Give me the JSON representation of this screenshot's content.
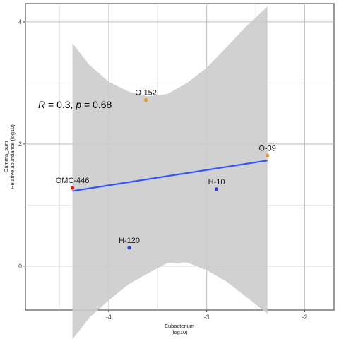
{
  "chart_data": {
    "type": "scatter",
    "xlabel": [
      "Eubacterium",
      "(log10)"
    ],
    "ylabel": [
      "Gamma_sum",
      "Relative abundance (log10)"
    ],
    "xlim": [
      -4.85,
      -1.7
    ],
    "ylim": [
      -0.72,
      4.3
    ],
    "x_ticks": [
      -4,
      -3,
      -2
    ],
    "y_ticks": [
      0,
      2,
      4
    ],
    "grid": true,
    "annotation": {
      "r_label": "R",
      "r_value": " = 0.3, ",
      "p_label": "p",
      "p_value": " = 0.68"
    },
    "points": [
      {
        "label": "OMC-446",
        "x": -4.37,
        "y": 1.28,
        "color": "#e41a1c"
      },
      {
        "label": "O-152",
        "x": -3.62,
        "y": 2.72,
        "color": "#e69533"
      },
      {
        "label": "H-10",
        "x": -2.9,
        "y": 1.26,
        "color": "#2b3bd8"
      },
      {
        "label": "H-120",
        "x": -3.79,
        "y": 0.3,
        "color": "#2b3bd8"
      },
      {
        "label": "O-39",
        "x": -2.38,
        "y": 1.81,
        "color": "#e69533"
      }
    ],
    "fit_line": {
      "x": [
        -4.37,
        -2.38
      ],
      "y": [
        1.23,
        1.73
      ],
      "color": "#3355ff"
    },
    "confidence_band": {
      "color": "#cccccc",
      "x": [
        -4.37,
        -4.2,
        -4.0,
        -3.8,
        -3.6,
        -3.4,
        -3.2,
        -3.0,
        -2.8,
        -2.6,
        -2.38
      ],
      "upper": [
        3.65,
        3.3,
        3.02,
        2.86,
        2.78,
        2.82,
        3.0,
        3.25,
        3.58,
        3.92,
        4.25
      ],
      "lower": [
        -1.2,
        -0.85,
        -0.56,
        -0.3,
        -0.12,
        0.05,
        0.06,
        -0.07,
        -0.25,
        -0.5,
        -0.78
      ]
    }
  }
}
